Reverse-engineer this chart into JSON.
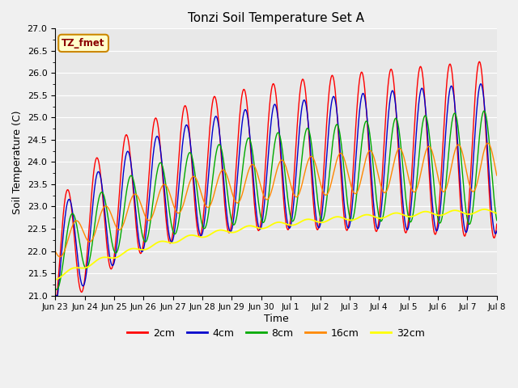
{
  "title": "Tonzi Soil Temperature Set A",
  "xlabel": "Time",
  "ylabel": "Soil Temperature (C)",
  "ylim": [
    21.0,
    27.0
  ],
  "yticks": [
    21.0,
    21.5,
    22.0,
    22.5,
    23.0,
    23.5,
    24.0,
    24.5,
    25.0,
    25.5,
    26.0,
    26.5,
    27.0
  ],
  "annotation": "TZ_fmet",
  "plot_bg_color": "#e8e8e8",
  "fig_bg_color": "#f0f0f0",
  "line_colors": {
    "2cm": "#ff0000",
    "4cm": "#0000cc",
    "8cm": "#00aa00",
    "16cm": "#ff8800",
    "32cm": "#ffff00"
  },
  "legend_labels": [
    "2cm",
    "4cm",
    "8cm",
    "16cm",
    "32cm"
  ],
  "xtick_labels": [
    "Jun 23",
    "Jun 24",
    "Jun 25",
    "Jun 26",
    "Jun 27",
    "Jun 28",
    "Jun 29",
    "Jun 30",
    "Jul 1",
    "Jul 2",
    "Jul 3",
    "Jul 4",
    "Jul 5",
    "Jul 6",
    "Jul 7",
    "Jul 8"
  ],
  "n_points": 720
}
